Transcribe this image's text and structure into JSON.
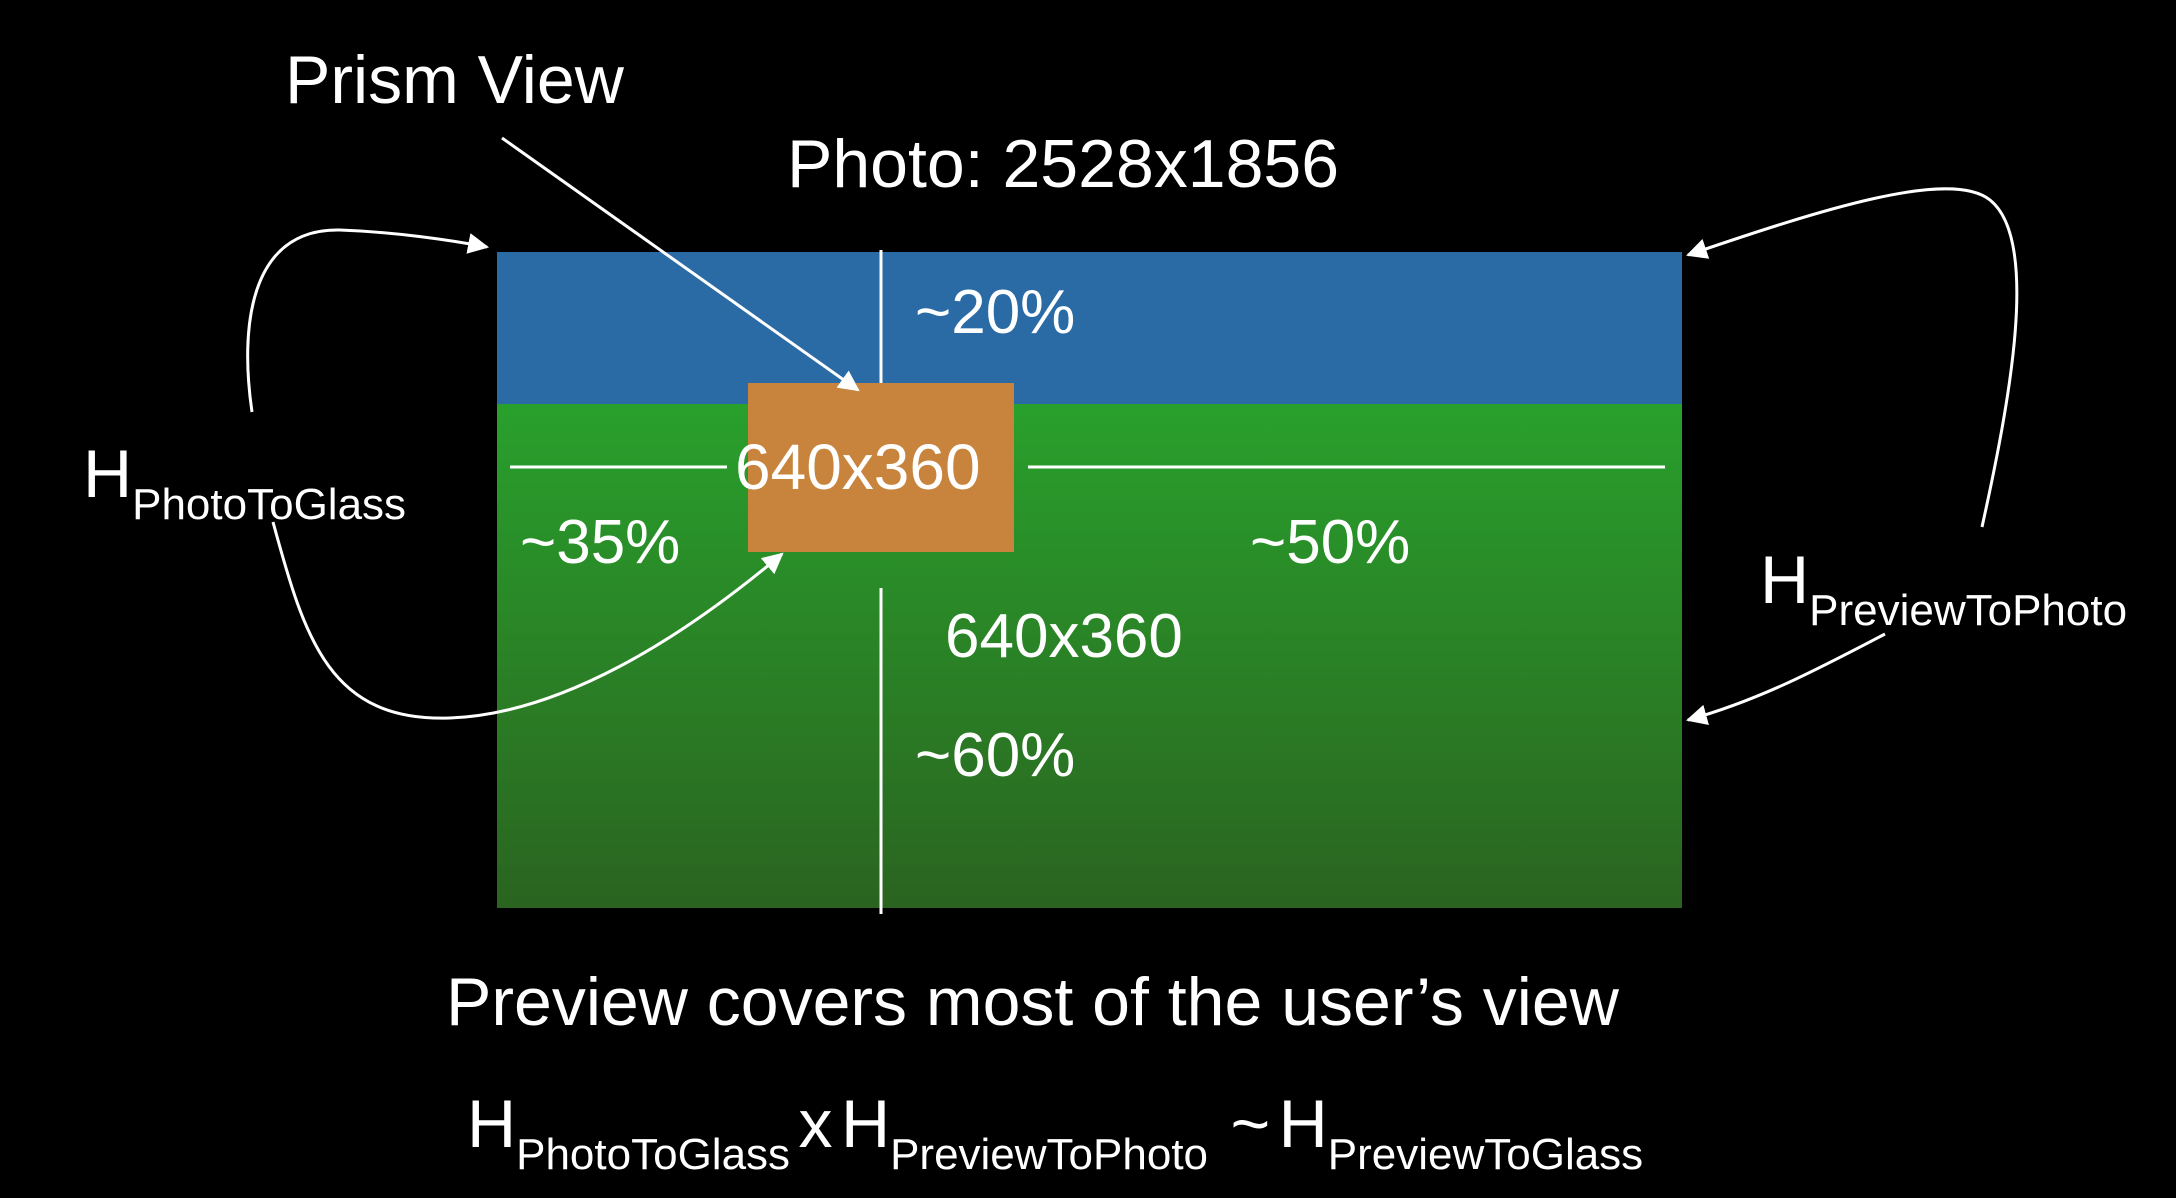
{
  "prism_view_label": "Prism View",
  "photo_label": "Photo: 2528x1856",
  "box_label": "640x360",
  "preview_size_label": "640x360",
  "pct_top": "~20%",
  "pct_left": "~35%",
  "pct_right": "~50%",
  "pct_bottom": "~60%",
  "h_photo_to_glass": {
    "h": "H",
    "sub": "PhotoToGlass"
  },
  "h_preview_to_photo": {
    "h": "H",
    "sub": "PreviewToPhoto"
  },
  "caption": "Preview covers most of the user’s view",
  "formula": {
    "term1_h": "H",
    "term1_sub": "PhotoToGlass",
    "times": "x",
    "term2_h": "H",
    "term2_sub": "PreviewToPhoto",
    "approx": "~",
    "term3_h": "H",
    "term3_sub": "PreviewToGlass"
  },
  "colors": {
    "background": "#000000",
    "sky_blue": "#2a6ba6",
    "grass_green_top": "#2a9a2e",
    "grass_green_bottom": "#2a6a22",
    "prism_orange": "#c8843c",
    "lines": "#ffffff"
  }
}
